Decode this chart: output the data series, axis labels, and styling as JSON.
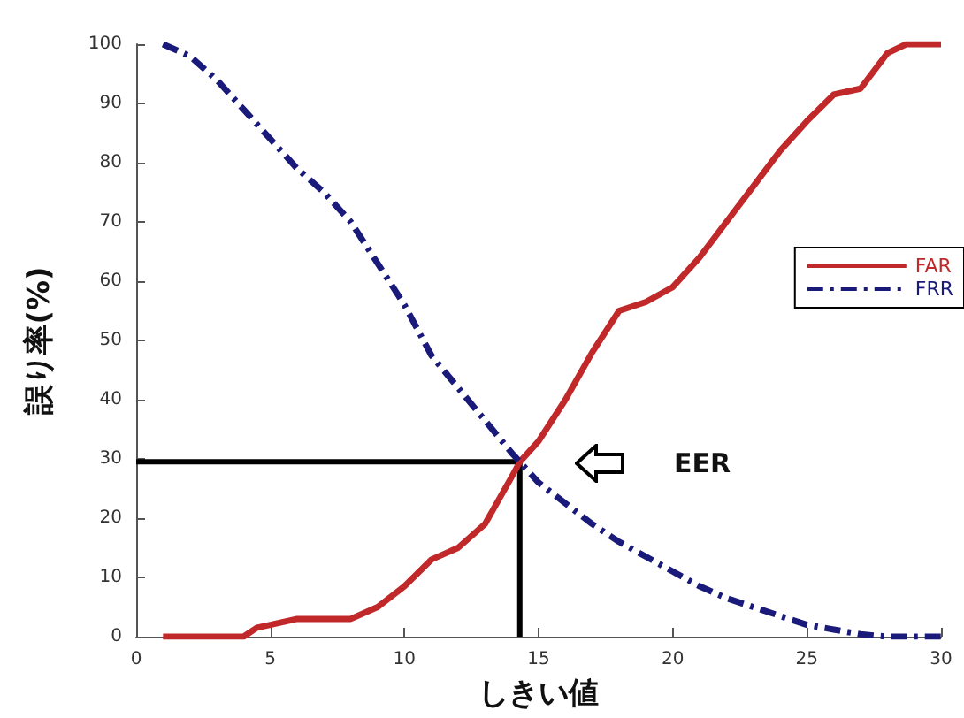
{
  "chart_data": {
    "type": "line",
    "xlabel": "しきい値",
    "ylabel": "誤り率(%)",
    "xlim": [
      0,
      30
    ],
    "xticks": [
      0,
      5,
      10,
      15,
      20,
      25,
      30
    ],
    "ylim": [
      0,
      100
    ],
    "yticks": [
      0,
      10,
      20,
      30,
      40,
      50,
      60,
      70,
      80,
      90,
      100
    ],
    "grid": false,
    "legend": "right",
    "marker": "none",
    "annotations": [
      "EER"
    ],
    "series": [
      {
        "name": "FAR",
        "color": "#c0282a",
        "line_style": "solid",
        "x": [
          1,
          2,
          3,
          4,
          4.5,
          5,
          6,
          7,
          8,
          9,
          10,
          11,
          12,
          13,
          13.5,
          14,
          14.3,
          15,
          16,
          17,
          18,
          19,
          20,
          21,
          22,
          23,
          24,
          25,
          26,
          27,
          28,
          28.7,
          30
        ],
        "values": [
          0,
          0,
          0,
          0,
          1.5,
          2,
          3,
          3,
          3,
          5,
          8.5,
          13,
          15,
          19,
          23,
          27,
          29.5,
          33,
          40,
          48,
          55,
          56.5,
          59,
          64,
          70,
          76,
          82,
          87,
          91.5,
          92.5,
          98.5,
          100,
          100
        ]
      },
      {
        "name": "FRR",
        "color": "#1a1a7a",
        "line_style": "dashdot",
        "x": [
          1,
          2,
          3,
          4,
          5,
          6,
          7,
          8,
          9,
          10,
          11,
          12,
          13,
          14,
          14.3,
          15,
          16,
          17,
          18,
          19,
          20,
          21,
          22,
          23,
          24,
          25,
          26,
          27,
          28,
          29,
          30
        ],
        "values": [
          100,
          98,
          94,
          89,
          84,
          79,
          75,
          70,
          63,
          56,
          47.5,
          42,
          36.5,
          31,
          29.5,
          26,
          22.5,
          19,
          16,
          13.5,
          11,
          8.5,
          6.5,
          5,
          3.5,
          2,
          1.2,
          0.4,
          0,
          0,
          0
        ]
      },
      {
        "type": "line",
        "color": "#000000",
        "line_style": "solid",
        "x": [
          0,
          14.3,
          14.3
        ],
        "values": [
          29.5,
          29.5,
          0
        ]
      }
    ]
  }
}
